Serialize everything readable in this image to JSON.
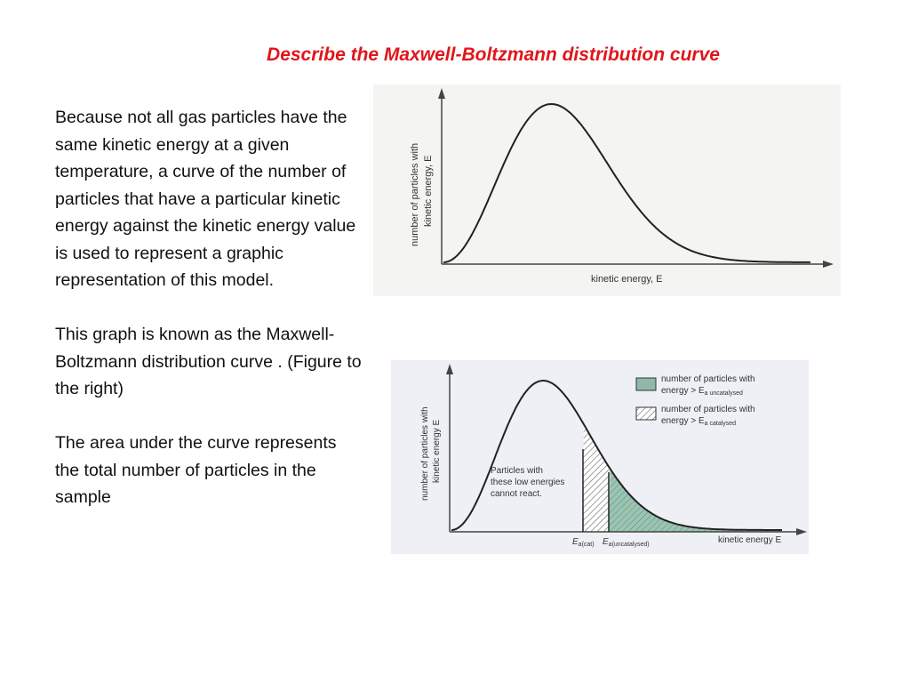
{
  "title": "Describe the Maxwell-Boltzmann distribution curve",
  "paragraphs": [
    "Because not all gas particles have the same kinetic energy at a given temperature, a curve of the number of particles that have a particular kinetic energy against the kinetic energy value is used to represent a graphic representation of this model.",
    "This graph is known as the Maxwell-Boltzmann distribution curve . (Figure to the right)",
    "The area under the curve represents the total number of particles in the sample"
  ],
  "chart_data": [
    {
      "type": "line",
      "title": "",
      "xlabel": "kinetic energy, E",
      "ylabel_line1": "number of particles with",
      "ylabel_line2": "kinetic energy, E",
      "series": [
        {
          "values": []
        }
      ],
      "grid": false
    },
    {
      "type": "area",
      "title": "",
      "xlabel": "kinetic energy E",
      "ylabel_line1": "number of particles with",
      "ylabel_line2": "kinetic energy E",
      "annotation": [
        "Particles with",
        "these low energies",
        "cannot react."
      ],
      "x_markers": [
        {
          "label_main": "E",
          "label_sub": "a(cat)"
        },
        {
          "label_main": "E",
          "label_sub": "a(uncatalysed)"
        }
      ],
      "legend": [
        {
          "line1": "number of particles with",
          "line2_prefix": "energy > E",
          "line2_sub": "a uncatalysed",
          "fill": "#8fb9a6",
          "pattern": "solid"
        },
        {
          "line1": "number of particles with",
          "line2_prefix": "energy > E",
          "line2_sub": "a catalysed",
          "fill": "#ffffff",
          "pattern": "hatched"
        }
      ],
      "legend_placement": "top-right",
      "grid": false
    }
  ]
}
